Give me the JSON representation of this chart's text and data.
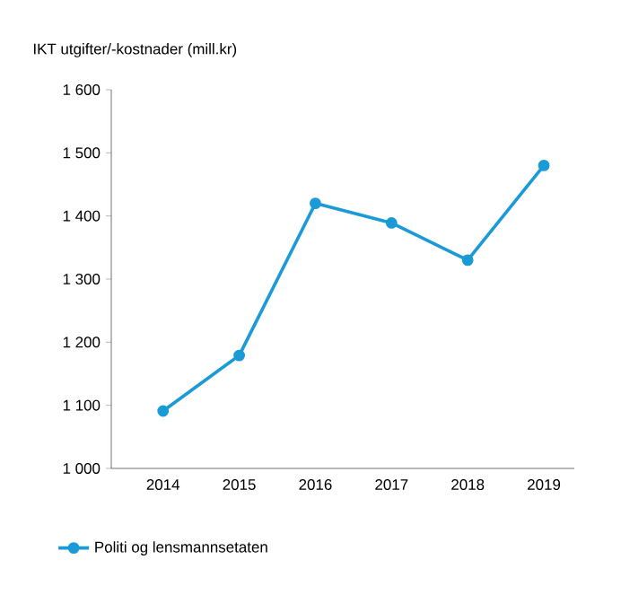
{
  "chart_data": {
    "type": "line",
    "ylabel": "IKT utgifter/-kostnader (mill.kr)",
    "categories": [
      "2014",
      "2015",
      "2016",
      "2017",
      "2018",
      "2019"
    ],
    "series": [
      {
        "name": "Politi og lensmannsetaten",
        "color": "#1a9ad6",
        "values": [
          1091,
          1179,
          1420,
          1389,
          1330,
          1480
        ]
      }
    ],
    "ylim": [
      1000,
      1600
    ],
    "yticks": [
      {
        "value": 1000,
        "label": "1 000"
      },
      {
        "value": 1100,
        "label": "1 100"
      },
      {
        "value": 1200,
        "label": "1 200"
      },
      {
        "value": 1300,
        "label": "1 300"
      },
      {
        "value": 1400,
        "label": "1 400"
      },
      {
        "value": 1500,
        "label": "1 500"
      },
      {
        "value": 1600,
        "label": "1 600"
      }
    ],
    "grid": false,
    "legend": "bottom",
    "marker": "circle",
    "line_style": "solid"
  }
}
